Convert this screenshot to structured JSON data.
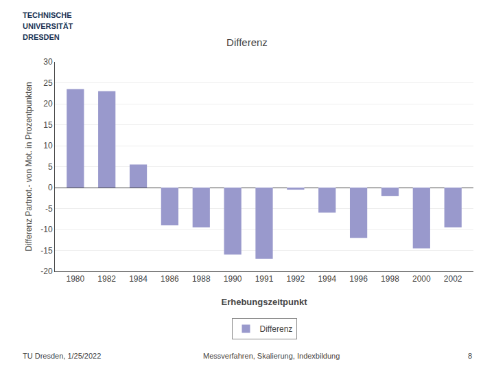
{
  "chart_data": {
    "type": "bar",
    "title": "Differenz",
    "x_label": "Erhebungszeitpunkt",
    "y_label": "Differenz Partnot.- von Mot. in Prozentpunkten",
    "categories": [
      "1980",
      "1982",
      "1984",
      "1986",
      "1988",
      "1990",
      "1991",
      "1992",
      "1994",
      "1996",
      "1998",
      "2000",
      "2002"
    ],
    "series": [
      {
        "name": "Differenz",
        "color": "#9999cc",
        "values": [
          23.5,
          23.0,
          5.5,
          -9.0,
          -9.5,
          -16.0,
          -17.0,
          -0.5,
          -6.0,
          -12.0,
          -2.0,
          -14.5,
          -9.5
        ]
      }
    ],
    "ylim": [
      -20,
      30
    ],
    "yticks": [
      -20,
      -15,
      -10,
      -5,
      0,
      5,
      10,
      15,
      20,
      25,
      30
    ],
    "grid": true,
    "legend": "bottom",
    "annotations": [
      "TECHNISCHE",
      "UNIVERSITÄT",
      "DRESDEN",
      "TU Dresden, 1/25/2022",
      "Messverfahren, Skalierung, Indexbildung",
      "8"
    ]
  }
}
